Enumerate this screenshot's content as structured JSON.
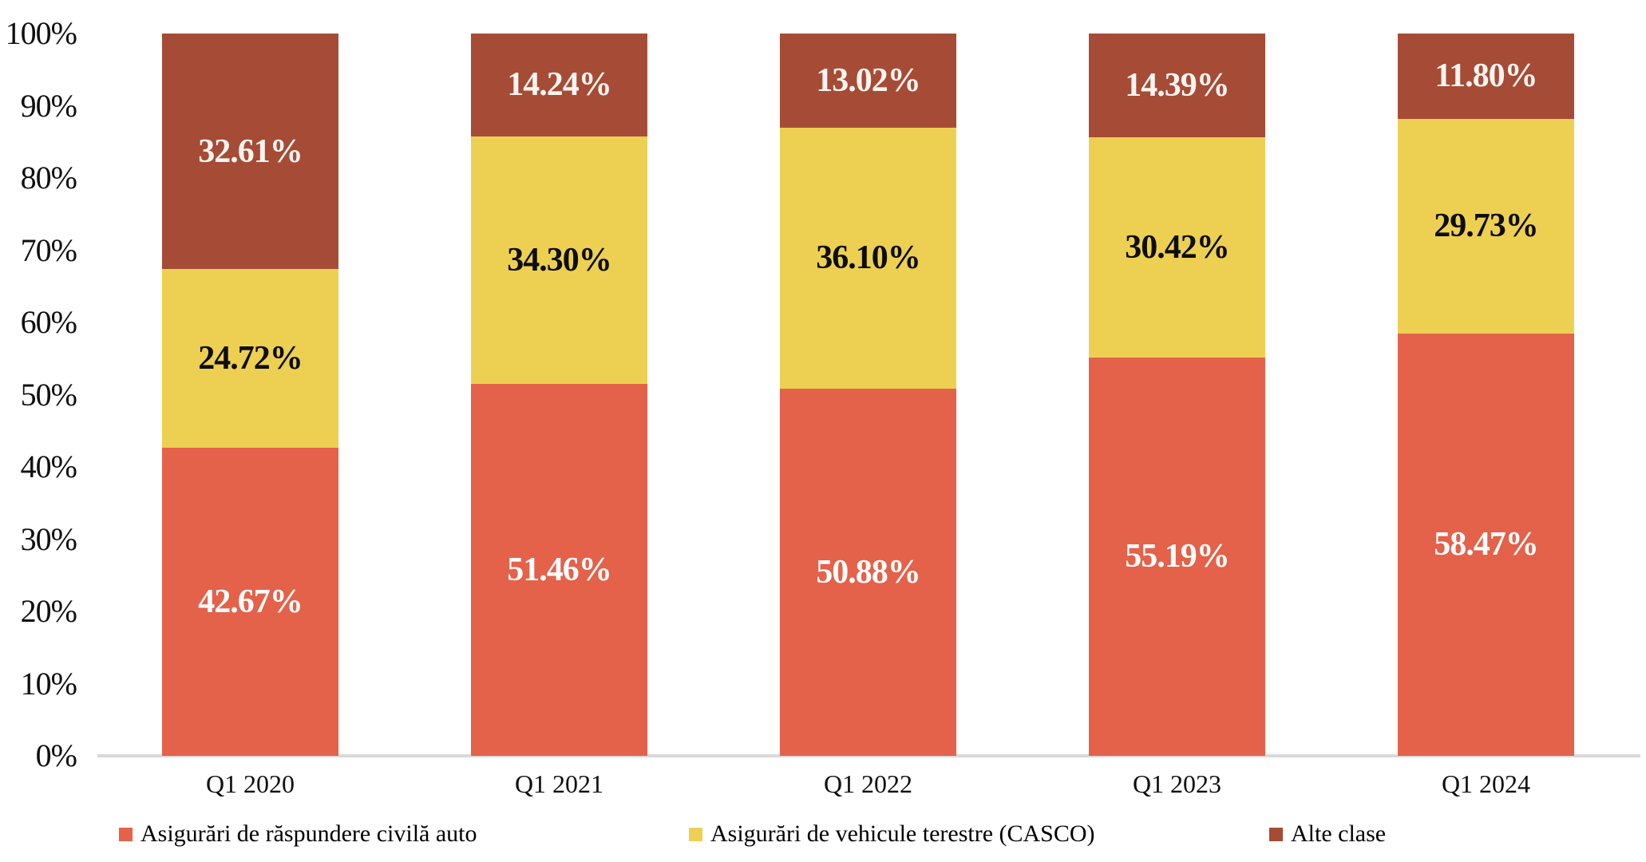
{
  "chart_data": {
    "type": "bar",
    "stacked": true,
    "percent_stacked": true,
    "title": "",
    "xlabel": "",
    "ylabel": "",
    "grid": false,
    "legend_position": "bottom",
    "background_color": "#ffffff",
    "axis_line_color": "#d9d9d9",
    "categories": [
      "Q1 2020",
      "Q1 2021",
      "Q1 2022",
      "Q1 2023",
      "Q1 2024"
    ],
    "y_axis": {
      "min": 0,
      "max": 100,
      "tick_step": 10,
      "ticks": [
        "0%",
        "10%",
        "20%",
        "30%",
        "40%",
        "50%",
        "60%",
        "70%",
        "80%",
        "90%",
        "100%"
      ]
    },
    "series": [
      {
        "name": "Asigurări de răspundere civilă auto",
        "color": "#e4614a",
        "label_color": "#ffffff",
        "values": [
          42.67,
          51.46,
          50.88,
          55.19,
          58.47
        ],
        "labels": [
          "42.67%",
          "51.46%",
          "50.88%",
          "55.19%",
          "58.47%"
        ]
      },
      {
        "name": "Asigurări de vehicule terestre (CASCO)",
        "color": "#edd052",
        "label_color": "#0d0d0d",
        "values": [
          24.72,
          34.3,
          36.1,
          30.42,
          29.73
        ],
        "labels": [
          "24.72%",
          "34.30%",
          "36.10%",
          "30.42%",
          "29.73%"
        ]
      },
      {
        "name": "Alte clase",
        "color": "#a64b35",
        "label_color": "#fbf4f0",
        "values": [
          32.61,
          14.24,
          13.02,
          14.39,
          11.8
        ],
        "labels": [
          "32.61%",
          "14.24%",
          "13.02%",
          "14.39%",
          "11.80%"
        ]
      }
    ]
  },
  "layout_note": "100% stacked column chart, white background, no gridlines, light gray baseline, legend below"
}
